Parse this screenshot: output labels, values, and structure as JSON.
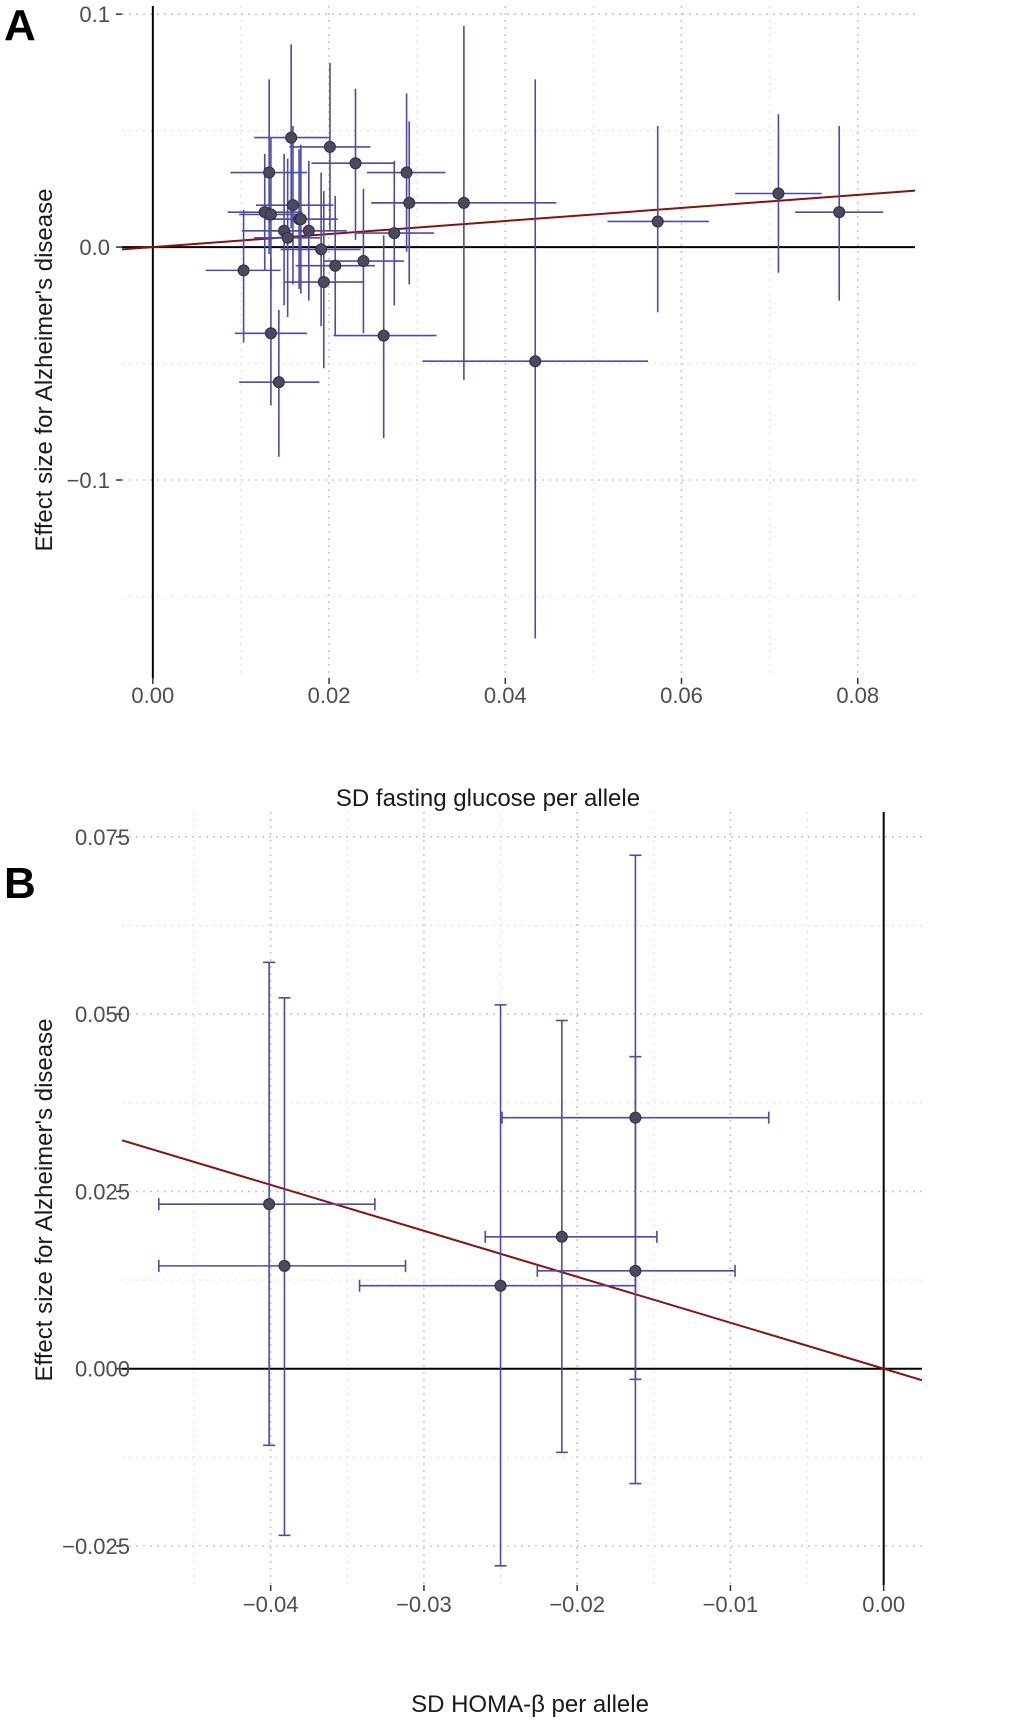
{
  "chart_data": [
    {
      "type": "scatter",
      "panel": "A",
      "xlabel": "SD fasting glucose per allele",
      "ylabel": "Effect size for Alzheimer's disease",
      "xlim": [
        -0.0035,
        0.0865
      ],
      "ylim": [
        -0.185,
        0.1035
      ],
      "xticks": [
        0.0,
        0.02,
        0.04,
        0.06,
        0.08
      ],
      "xtick_labels": [
        "0.00",
        "0.02",
        "0.04",
        "0.06",
        "0.08"
      ],
      "yticks": [
        0.1,
        0.0,
        -0.1
      ],
      "ytick_labels": [
        "0.1",
        "0.0",
        "−0.1"
      ],
      "minor_x": [
        0.01,
        0.03,
        0.05,
        0.07
      ],
      "minor_y": [
        0.05,
        -0.05,
        -0.15
      ],
      "regression": {
        "slope": 0.28,
        "intercept": 0.0
      },
      "points": [
        {
          "x": 0.0103,
          "y": -0.01,
          "x_lo": 0.006,
          "x_hi": 0.0145,
          "y_lo": -0.041,
          "y_hi": 0.016
        },
        {
          "x": 0.0127,
          "y": 0.015,
          "x_lo": 0.0085,
          "x_hi": 0.017,
          "y_lo": -0.01,
          "y_hi": 0.04
        },
        {
          "x": 0.0132,
          "y": 0.032,
          "x_lo": 0.0088,
          "x_hi": 0.0175,
          "y_lo": -0.003,
          "y_hi": 0.072
        },
        {
          "x": 0.0134,
          "y": 0.014,
          "x_lo": 0.0098,
          "x_hi": 0.017,
          "y_lo": -0.018,
          "y_hi": 0.047
        },
        {
          "x": 0.0134,
          "y": -0.037,
          "x_lo": 0.0093,
          "x_hi": 0.0175,
          "y_lo": -0.068,
          "y_hi": -0.005
        },
        {
          "x": 0.0143,
          "y": -0.058,
          "x_lo": 0.0098,
          "x_hi": 0.0189,
          "y_lo": -0.09,
          "y_hi": -0.027
        },
        {
          "x": 0.0149,
          "y": 0.007,
          "x_lo": 0.0101,
          "x_hi": 0.0195,
          "y_lo": -0.025,
          "y_hi": 0.04
        },
        {
          "x": 0.0153,
          "y": 0.004,
          "x_lo": 0.0115,
          "x_hi": 0.019,
          "y_lo": -0.03,
          "y_hi": 0.038
        },
        {
          "x": 0.0157,
          "y": 0.047,
          "x_lo": 0.0115,
          "x_hi": 0.02,
          "y_lo": 0.008,
          "y_hi": 0.087
        },
        {
          "x": 0.0159,
          "y": 0.018,
          "x_lo": 0.0117,
          "x_hi": 0.0205,
          "y_lo": -0.016,
          "y_hi": 0.052
        },
        {
          "x": 0.0166,
          "y": 0.012,
          "x_lo": 0.0127,
          "x_hi": 0.0207,
          "y_lo": -0.018,
          "y_hi": 0.042
        },
        {
          "x": 0.0168,
          "y": 0.012,
          "x_lo": 0.0128,
          "x_hi": 0.021,
          "y_lo": -0.02,
          "y_hi": 0.044
        },
        {
          "x": 0.0177,
          "y": 0.007,
          "x_lo": 0.0135,
          "x_hi": 0.022,
          "y_lo": -0.023,
          "y_hi": 0.037
        },
        {
          "x": 0.0191,
          "y": -0.001,
          "x_lo": 0.0145,
          "x_hi": 0.0236,
          "y_lo": -0.034,
          "y_hi": 0.032
        },
        {
          "x": 0.0194,
          "y": -0.015,
          "x_lo": 0.015,
          "x_hi": 0.024,
          "y_lo": -0.052,
          "y_hi": 0.024
        },
        {
          "x": 0.0201,
          "y": 0.043,
          "x_lo": 0.0155,
          "x_hi": 0.0247,
          "y_lo": 0.007,
          "y_hi": 0.079
        },
        {
          "x": 0.0207,
          "y": -0.008,
          "x_lo": 0.0162,
          "x_hi": 0.0252,
          "y_lo": -0.038,
          "y_hi": 0.022
        },
        {
          "x": 0.023,
          "y": 0.036,
          "x_lo": 0.018,
          "x_hi": 0.0275,
          "y_lo": 0.003,
          "y_hi": 0.068
        },
        {
          "x": 0.0239,
          "y": -0.006,
          "x_lo": 0.0195,
          "x_hi": 0.0285,
          "y_lo": -0.037,
          "y_hi": 0.025
        },
        {
          "x": 0.0262,
          "y": -0.038,
          "x_lo": 0.0205,
          "x_hi": 0.0322,
          "y_lo": -0.082,
          "y_hi": 0.005
        },
        {
          "x": 0.0274,
          "y": 0.006,
          "x_lo": 0.023,
          "x_hi": 0.0319,
          "y_lo": -0.025,
          "y_hi": 0.037
        },
        {
          "x": 0.0288,
          "y": 0.032,
          "x_lo": 0.0243,
          "x_hi": 0.0332,
          "y_lo": -0.002,
          "y_hi": 0.066
        },
        {
          "x": 0.0291,
          "y": 0.019,
          "x_lo": 0.0248,
          "x_hi": 0.0333,
          "y_lo": -0.016,
          "y_hi": 0.054
        },
        {
          "x": 0.0353,
          "y": 0.019,
          "x_lo": 0.0248,
          "x_hi": 0.0458,
          "y_lo": -0.057,
          "y_hi": 0.095
        },
        {
          "x": 0.0434,
          "y": -0.049,
          "x_lo": 0.0306,
          "x_hi": 0.0562,
          "y_lo": -0.168,
          "y_hi": 0.072
        },
        {
          "x": 0.0573,
          "y": 0.011,
          "x_lo": 0.0516,
          "x_hi": 0.0631,
          "y_lo": -0.028,
          "y_hi": 0.052
        },
        {
          "x": 0.071,
          "y": 0.023,
          "x_lo": 0.0661,
          "x_hi": 0.0759,
          "y_lo": -0.011,
          "y_hi": 0.057
        },
        {
          "x": 0.0779,
          "y": 0.015,
          "x_lo": 0.0729,
          "x_hi": 0.0829,
          "y_lo": -0.023,
          "y_hi": 0.052
        }
      ]
    },
    {
      "type": "scatter",
      "panel": "B",
      "xlabel": "SD HOMA-β per allele",
      "ylabel": "Effect size for Alzheimer's disease",
      "xlim": [
        -0.0497,
        0.0025
      ],
      "ylim": [
        -0.0305,
        0.0785
      ],
      "xticks": [
        -0.04,
        -0.03,
        -0.02,
        -0.01,
        0.0
      ],
      "xtick_labels": [
        "−0.04",
        "−0.03",
        "−0.02",
        "−0.01",
        "0.00"
      ],
      "yticks": [
        0.075,
        0.05,
        0.025,
        0.0,
        -0.025
      ],
      "ytick_labels": [
        "0.075",
        "0.050",
        "0.025",
        "0.000",
        "−0.025"
      ],
      "minor_x": [
        -0.045,
        -0.035,
        -0.025,
        -0.015,
        -0.005
      ],
      "minor_y": [
        0.0625,
        0.0375,
        0.0125,
        -0.0125
      ],
      "regression": {
        "slope": -0.648,
        "intercept": 0.0
      },
      "points": [
        {
          "x": -0.0401,
          "y": 0.0232,
          "x_lo": -0.0473,
          "x_hi": -0.0332,
          "y_lo": -0.0108,
          "y_hi": 0.0573
        },
        {
          "x": -0.0391,
          "y": 0.0145,
          "x_lo": -0.0473,
          "x_hi": -0.0312,
          "y_lo": -0.0235,
          "y_hi": 0.0523
        },
        {
          "x": -0.025,
          "y": 0.0117,
          "x_lo": -0.0342,
          "x_hi": -0.0162,
          "y_lo": -0.0278,
          "y_hi": 0.0513
        },
        {
          "x": -0.021,
          "y": 0.0186,
          "x_lo": -0.026,
          "x_hi": -0.0148,
          "y_lo": -0.0118,
          "y_hi": 0.0491
        },
        {
          "x": -0.0162,
          "y": 0.0354,
          "x_lo": -0.0249,
          "x_hi": -0.0075,
          "y_lo": -0.0015,
          "y_hi": 0.0724
        },
        {
          "x": -0.0162,
          "y": 0.0138,
          "x_lo": -0.0226,
          "x_hi": -0.0097,
          "y_lo": -0.0162,
          "y_hi": 0.044
        }
      ]
    }
  ],
  "panels": {
    "a": {
      "letter": "A"
    },
    "b": {
      "letter": "B"
    }
  }
}
